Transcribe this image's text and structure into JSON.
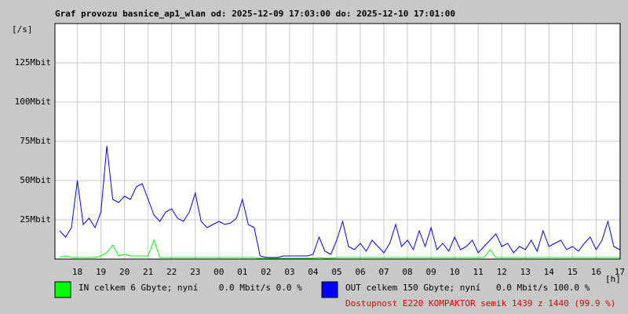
{
  "chart_data": {
    "type": "line",
    "title": "Graf provozu basnice_ap1_wlan od: 2025-12-09 17:03:00 do: 2025-12-10 17:01:00",
    "y_label": "[/s]",
    "x_label": "[h]",
    "xlim": [
      17.05,
      41.02
    ],
    "xticks": [
      18,
      19,
      20,
      21,
      22,
      23,
      {
        "value": 24,
        "label": "00"
      },
      {
        "value": 25,
        "label": "01"
      },
      {
        "value": 26,
        "label": "02"
      },
      {
        "value": 27,
        "label": "03"
      },
      {
        "value": 28,
        "label": "04"
      },
      {
        "value": 29,
        "label": "05"
      },
      {
        "value": 30,
        "label": "06"
      },
      {
        "value": 31,
        "label": "07"
      },
      {
        "value": 32,
        "label": "08"
      },
      {
        "value": 33,
        "label": "09"
      },
      {
        "value": 34,
        "label": "10"
      },
      {
        "value": 35,
        "label": "11"
      },
      {
        "value": 36,
        "label": "12"
      },
      {
        "value": 37,
        "label": "13"
      },
      {
        "value": 38,
        "label": "14"
      },
      {
        "value": 39,
        "label": "15"
      },
      {
        "value": 40,
        "label": "16"
      },
      {
        "value": 41,
        "label": "17"
      }
    ],
    "ylim": [
      0,
      150
    ],
    "yticks": [
      {
        "value": 25,
        "label": "25Mbit"
      },
      {
        "value": 50,
        "label": "50Mbit"
      },
      {
        "value": 75,
        "label": "75Mbit"
      },
      {
        "value": 100,
        "label": "100Mbit"
      },
      {
        "value": 125,
        "label": "125Mbit"
      }
    ],
    "grid": true,
    "x": [
      17.25,
      17.5,
      17.75,
      18,
      18.25,
      18.5,
      18.75,
      19,
      19.25,
      19.5,
      19.75,
      20,
      20.25,
      20.5,
      20.75,
      21,
      21.25,
      21.5,
      21.75,
      22,
      22.25,
      22.5,
      22.75,
      23,
      23.25,
      23.5,
      23.75,
      24,
      24.25,
      24.5,
      24.75,
      25,
      25.25,
      25.5,
      25.75,
      26,
      26.25,
      26.5,
      26.75,
      27,
      27.25,
      27.5,
      27.75,
      28,
      28.25,
      28.5,
      28.75,
      29,
      29.25,
      29.5,
      29.75,
      30,
      30.25,
      30.5,
      30.75,
      31,
      31.25,
      31.5,
      31.75,
      32,
      32.25,
      32.5,
      32.75,
      33,
      33.25,
      33.5,
      33.75,
      34,
      34.25,
      34.5,
      34.75,
      35,
      35.25,
      35.5,
      35.75,
      36,
      36.25,
      36.5,
      36.75,
      37,
      37.25,
      37.5,
      37.75,
      38,
      38.25,
      38.5,
      38.75,
      39,
      39.25,
      39.5,
      39.75,
      40,
      40.25,
      40.5,
      40.75,
      41
    ],
    "series": [
      {
        "name": "OUT celkem 150 Gbyte; nyní   0.0 Mbit/s 100.0 %",
        "color": "#0000ff",
        "values": [
          18,
          14,
          20,
          50,
          22,
          26,
          20,
          30,
          72,
          38,
          36,
          40,
          38,
          46,
          48,
          38,
          28,
          24,
          30,
          32,
          26,
          24,
          30,
          42,
          24,
          20,
          22,
          24,
          22,
          23,
          26,
          38,
          22,
          20,
          2,
          1,
          1,
          1,
          2,
          2,
          2,
          2,
          2,
          3,
          14,
          5,
          3,
          12,
          24,
          8,
          6,
          10,
          5,
          12,
          8,
          4,
          10,
          22,
          8,
          12,
          6,
          18,
          8,
          20,
          6,
          10,
          5,
          14,
          6,
          8,
          12,
          4,
          8,
          12,
          16,
          8,
          10,
          4,
          8,
          6,
          12,
          5,
          18,
          8,
          10,
          12,
          6,
          8,
          5,
          10,
          14,
          6,
          12,
          24,
          8,
          6
        ]
      },
      {
        "name": "IN celkem 6 Gbyte; nyní    0.0 Mbit/s 0.0 %",
        "color": "#00ff00",
        "values": [
          1,
          2,
          1,
          1,
          1,
          1,
          1,
          2,
          4,
          9,
          2,
          3,
          2,
          2,
          2,
          2,
          12,
          1,
          1,
          1,
          1,
          1,
          1,
          1,
          1,
          1,
          1,
          1,
          1,
          1,
          1,
          1,
          1,
          1,
          0.5,
          0.5,
          0.5,
          0.5,
          0.5,
          0.5,
          0.5,
          0.5,
          0.5,
          0.5,
          1,
          0.5,
          0.5,
          1,
          1,
          1,
          1,
          1,
          1,
          1,
          1,
          1,
          1,
          1,
          1,
          1,
          1,
          1,
          1,
          1,
          1,
          1,
          1,
          1,
          1,
          1,
          1,
          1,
          1,
          6,
          1,
          1,
          1,
          1,
          1,
          1,
          1,
          1,
          1,
          1,
          1,
          1,
          1,
          1,
          1,
          1,
          1,
          1,
          1,
          1,
          1,
          1
        ]
      }
    ],
    "footer": "Dostupnost E220 KOMPAKTOR semik 1439 z 1440 (99.9 %)"
  }
}
